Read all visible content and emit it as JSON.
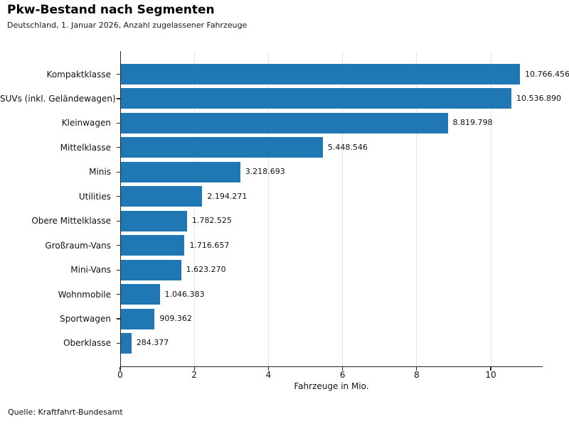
{
  "header": {
    "title": "Pkw-Bestand nach Segmenten",
    "subtitle": "Deutschland, 1. Januar 2026, Anzahl zugelassener Fahrzeuge"
  },
  "footer": {
    "source": "Quelle: Kraftfahrt-Bundesamt"
  },
  "colors": {
    "bar": "#1f77b4",
    "grid": "#e5e5e5",
    "axis": "#262626",
    "text": "#111111"
  },
  "chart_data": {
    "type": "bar",
    "orientation": "horizontal",
    "title": "Pkw-Bestand nach Segmenten",
    "subtitle": "Deutschland, 1. Januar 2026, Anzahl zugelassener Fahrzeuge",
    "categories": [
      "Kompaktklasse",
      "SUVs (inkl. Geländewagen)",
      "Kleinwagen",
      "Mittelklasse",
      "Minis",
      "Utilities",
      "Obere Mittelklasse",
      "Großraum-Vans",
      "Mini-Vans",
      "Wohnmobile",
      "Sportwagen",
      "Oberklasse"
    ],
    "values": [
      10766456,
      10536890,
      8819798,
      5448546,
      3218693,
      2194271,
      1782525,
      1716657,
      1623270,
      1046383,
      909362,
      284377
    ],
    "value_labels": [
      "10.766.456",
      "10.536.890",
      "8.819.798",
      "5.448.546",
      "3.218.693",
      "2.194.271",
      "1.782.525",
      "1.716.657",
      "1.623.270",
      "1.046.383",
      "909.362",
      "284.377"
    ],
    "xlabel": "Fahrzeuge in Mio.",
    "ylabel": "",
    "xticks": [
      0,
      2,
      4,
      6,
      8,
      10
    ],
    "xtick_labels": [
      "0",
      "2",
      "4",
      "6",
      "8",
      "10"
    ],
    "xlim": [
      0,
      11.4
    ],
    "grid": "vertical",
    "legend": "none",
    "source": "Quelle: Kraftfahrt-Bundesamt"
  }
}
